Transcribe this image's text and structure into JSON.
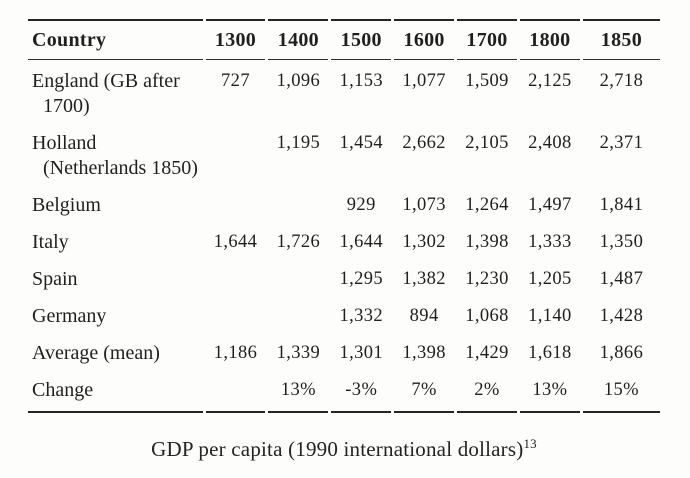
{
  "table": {
    "columns": [
      "Country",
      "1300",
      "1400",
      "1500",
      "1600",
      "1700",
      "1800",
      "1850"
    ],
    "rows": [
      {
        "country": [
          "England (GB after",
          "1700)"
        ],
        "values": [
          "727",
          "1,096",
          "1,153",
          "1,077",
          "1,509",
          "2,125",
          "2,718"
        ]
      },
      {
        "country": [
          "Holland",
          "(Netherlands 1850)"
        ],
        "values": [
          "",
          "1,195",
          "1,454",
          "2,662",
          "2,105",
          "2,408",
          "2,371"
        ]
      },
      {
        "country": [
          "Belgium"
        ],
        "values": [
          "",
          "",
          "929",
          "1,073",
          "1,264",
          "1,497",
          "1,841"
        ]
      },
      {
        "country": [
          "Italy"
        ],
        "values": [
          "1,644",
          "1,726",
          "1,644",
          "1,302",
          "1,398",
          "1,333",
          "1,350"
        ]
      },
      {
        "country": [
          "Spain"
        ],
        "values": [
          "",
          "",
          "1,295",
          "1,382",
          "1,230",
          "1,205",
          "1,487"
        ]
      },
      {
        "country": [
          "Germany"
        ],
        "values": [
          "",
          "",
          "1,332",
          "894",
          "1,068",
          "1,140",
          "1,428"
        ]
      },
      {
        "country": [
          "Average (mean)"
        ],
        "values": [
          "1,186",
          "1,339",
          "1,301",
          "1,398",
          "1,429",
          "1,618",
          "1,866"
        ]
      },
      {
        "country": [
          "Change"
        ],
        "values": [
          "",
          "13%",
          "-3%",
          "7%",
          "2%",
          "13%",
          "15%"
        ]
      }
    ]
  },
  "caption": {
    "text": "GDP per capita (1990 international dollars)",
    "footnote_ref": "13"
  },
  "colors": {
    "background": "#fdfdfc",
    "text": "#1f1f1f",
    "rule": "#262626"
  }
}
